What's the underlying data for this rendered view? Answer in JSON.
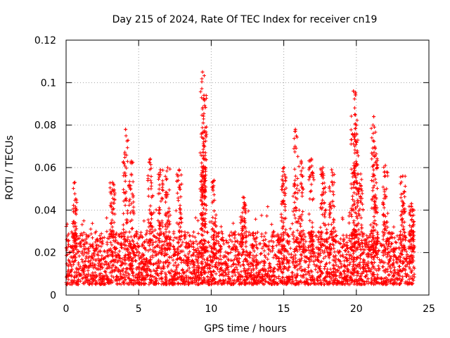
{
  "chart_data": {
    "type": "scatter",
    "title": "Day 215 of 2024, Rate Of TEC Index for receiver cn19",
    "xlabel": "GPS time / hours",
    "ylabel": "ROTI / TECUs",
    "xlim": [
      0,
      25
    ],
    "ylim": [
      0,
      0.12
    ],
    "x_ticks": [
      0,
      5,
      10,
      15,
      20,
      25
    ],
    "x_tick_labels": [
      "0",
      "5",
      "10",
      "15",
      "20",
      "25"
    ],
    "y_ticks": [
      0,
      0.02,
      0.04,
      0.06,
      0.08,
      0.1,
      0.12
    ],
    "y_tick_labels": [
      "0",
      "0.02",
      "0.04",
      "0.06",
      "0.08",
      "0.1",
      "0.12"
    ],
    "grid": true,
    "marker": "+",
    "marker_color": "#ff0000",
    "x_range_hours": [
      0,
      24
    ],
    "baseline_roti": [
      0.005,
      0.03
    ],
    "peaks": [
      {
        "x": 0.6,
        "y": 0.053
      },
      {
        "x": 3.2,
        "y": 0.053
      },
      {
        "x": 4.1,
        "y": 0.078
      },
      {
        "x": 4.5,
        "y": 0.063
      },
      {
        "x": 5.8,
        "y": 0.064
      },
      {
        "x": 6.5,
        "y": 0.059
      },
      {
        "x": 7.0,
        "y": 0.06
      },
      {
        "x": 7.8,
        "y": 0.059
      },
      {
        "x": 9.4,
        "y": 0.105
      },
      {
        "x": 9.5,
        "y": 0.094
      },
      {
        "x": 9.45,
        "y": 0.081
      },
      {
        "x": 9.5,
        "y": 0.07
      },
      {
        "x": 10.2,
        "y": 0.054
      },
      {
        "x": 12.2,
        "y": 0.046
      },
      {
        "x": 15.0,
        "y": 0.06
      },
      {
        "x": 15.8,
        "y": 0.078
      },
      {
        "x": 16.2,
        "y": 0.063
      },
      {
        "x": 16.9,
        "y": 0.064
      },
      {
        "x": 17.7,
        "y": 0.06
      },
      {
        "x": 18.3,
        "y": 0.059
      },
      {
        "x": 19.8,
        "y": 0.096
      },
      {
        "x": 19.9,
        "y": 0.085
      },
      {
        "x": 20.0,
        "y": 0.08
      },
      {
        "x": 20.3,
        "y": 0.057
      },
      {
        "x": 21.2,
        "y": 0.084
      },
      {
        "x": 21.3,
        "y": 0.069
      },
      {
        "x": 22.0,
        "y": 0.061
      },
      {
        "x": 23.2,
        "y": 0.056
      },
      {
        "x": 23.8,
        "y": 0.043
      }
    ]
  }
}
